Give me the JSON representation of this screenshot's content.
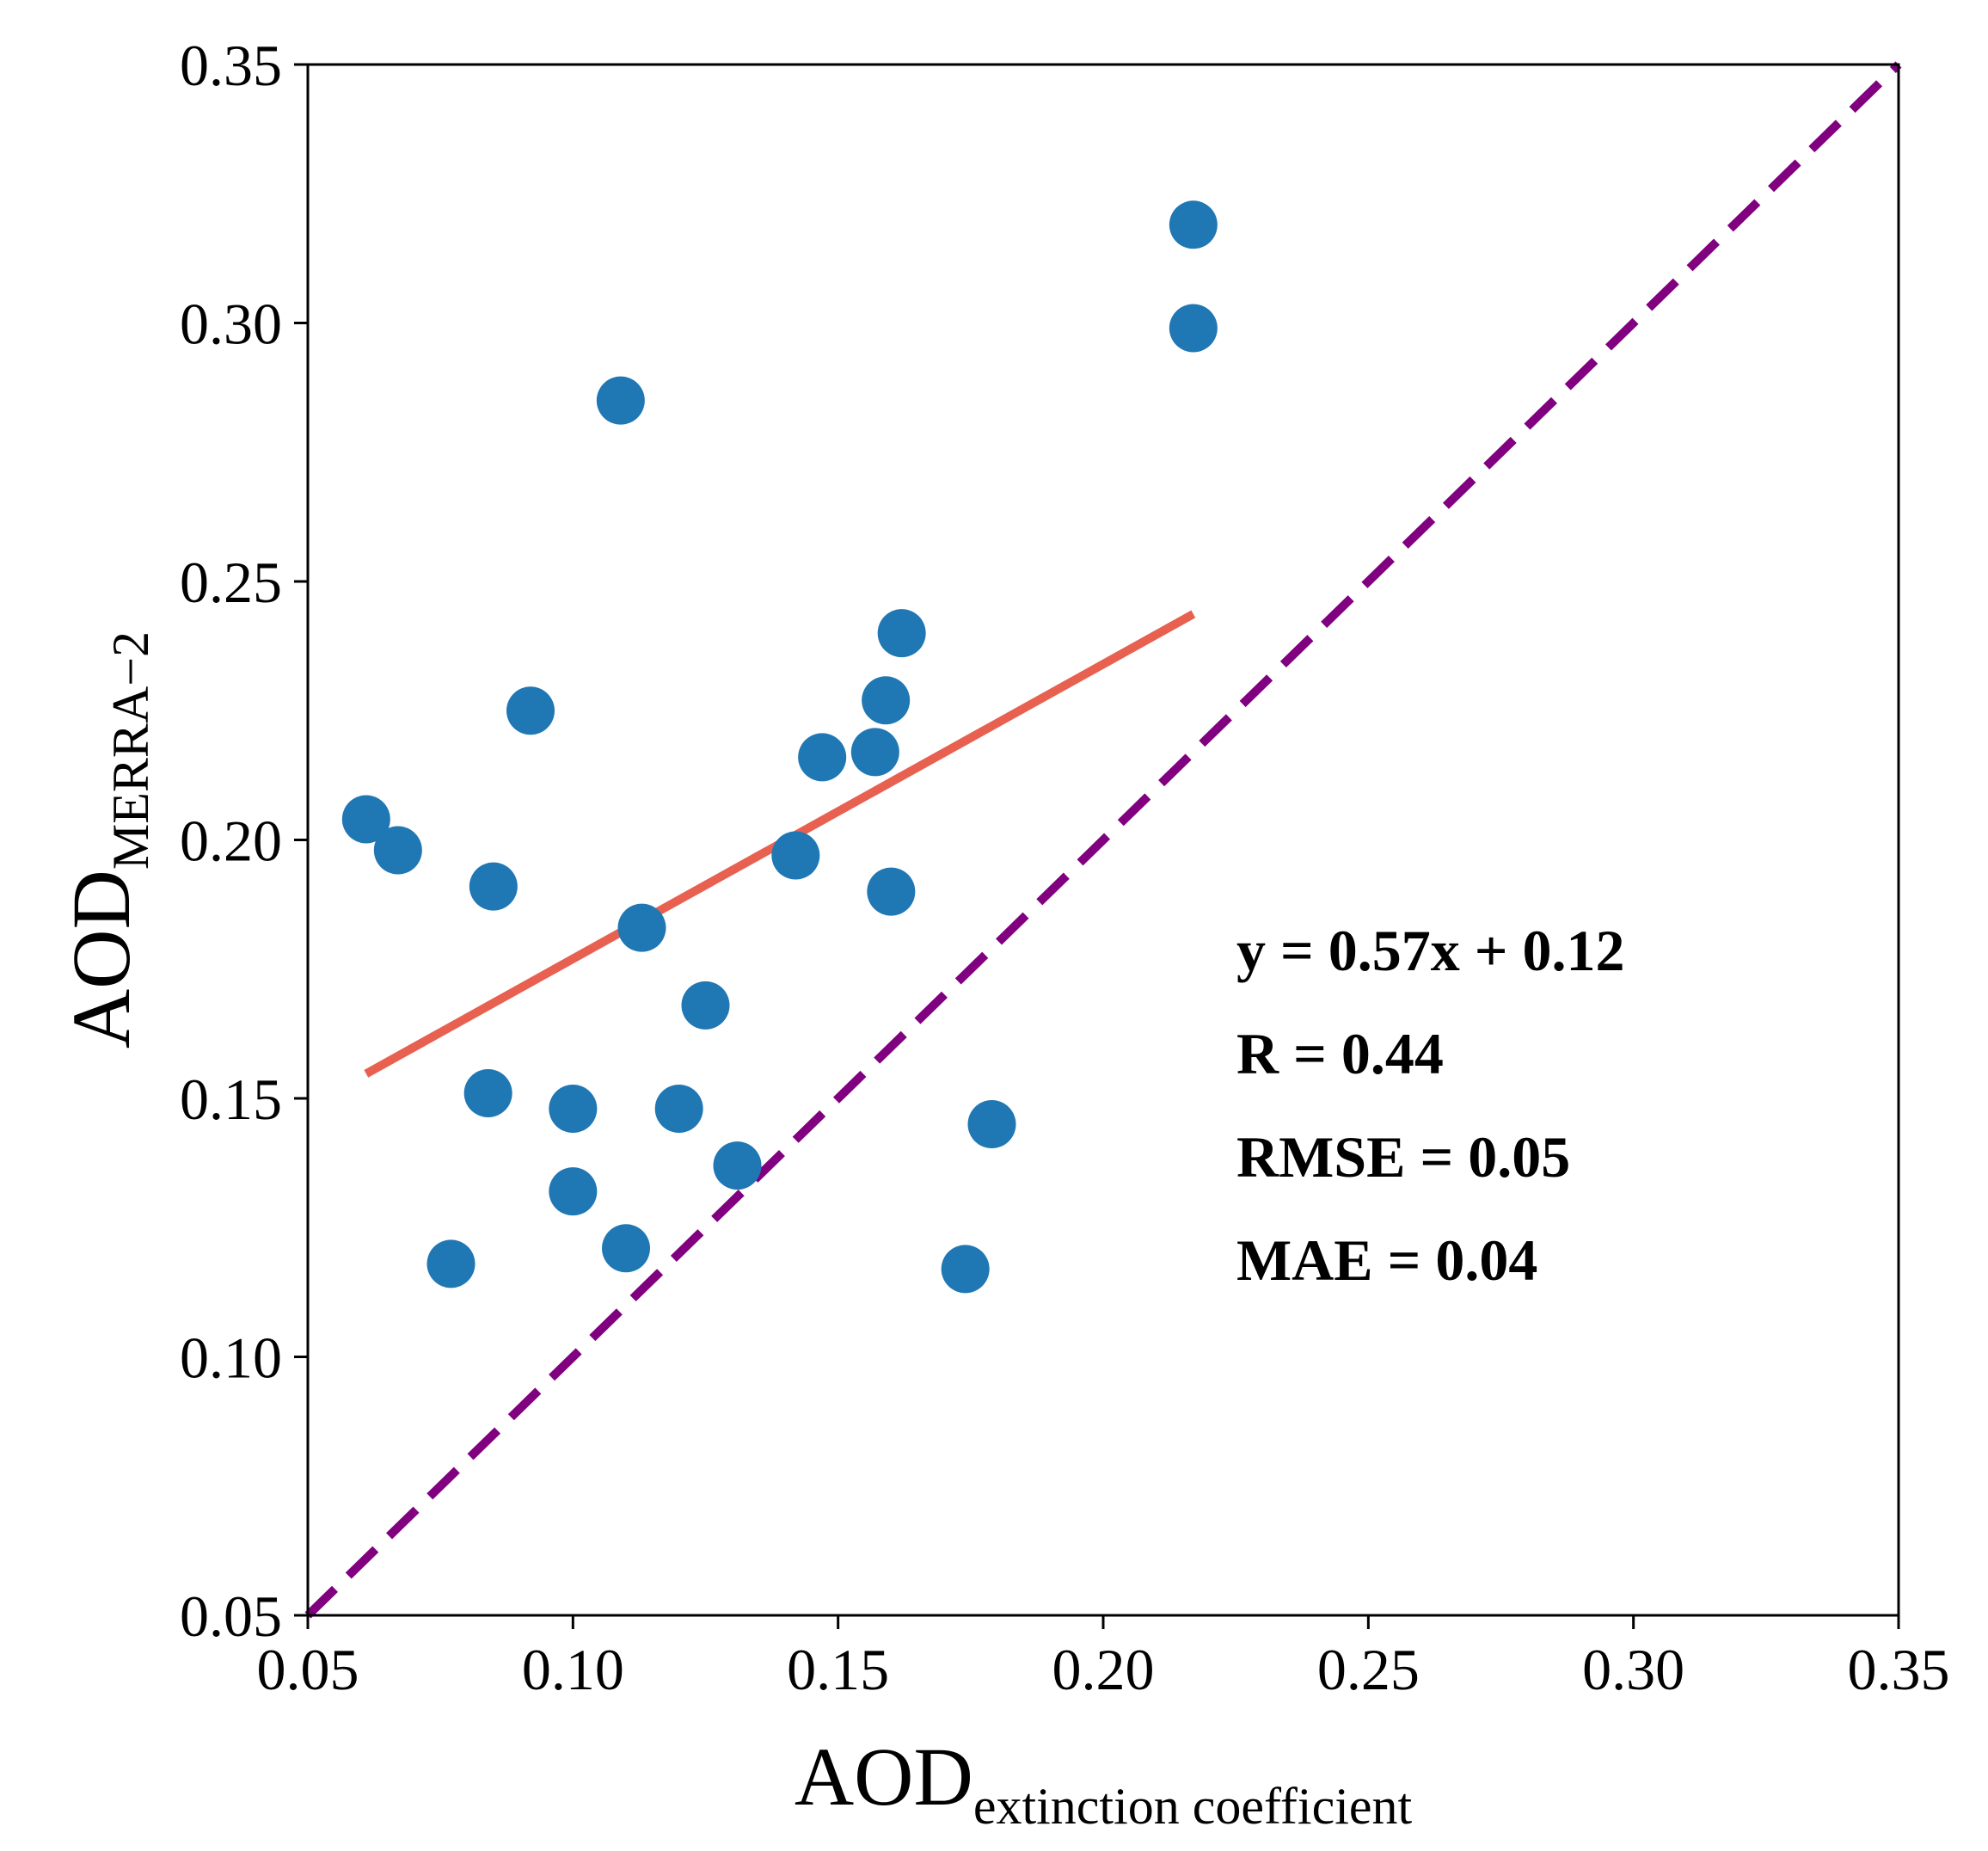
{
  "chart_data": {
    "type": "scatter",
    "xlabel": {
      "main": "AOD",
      "sub": "extinction coefficient"
    },
    "ylabel": {
      "main": "AOD",
      "sub": "MERRA−2"
    },
    "xlim": [
      0.05,
      0.35
    ],
    "ylim": [
      0.05,
      0.35
    ],
    "xticks": [
      "0.05",
      "0.10",
      "0.15",
      "0.20",
      "0.25",
      "0.30",
      "0.35"
    ],
    "yticks": [
      "0.05",
      "0.10",
      "0.15",
      "0.20",
      "0.25",
      "0.30",
      "0.35"
    ],
    "grid": false,
    "points": [
      {
        "x": 0.061,
        "y": 0.204
      },
      {
        "x": 0.067,
        "y": 0.198
      },
      {
        "x": 0.077,
        "y": 0.118
      },
      {
        "x": 0.084,
        "y": 0.151
      },
      {
        "x": 0.085,
        "y": 0.191
      },
      {
        "x": 0.092,
        "y": 0.225
      },
      {
        "x": 0.1,
        "y": 0.132
      },
      {
        "x": 0.1,
        "y": 0.148
      },
      {
        "x": 0.109,
        "y": 0.285
      },
      {
        "x": 0.11,
        "y": 0.121
      },
      {
        "x": 0.113,
        "y": 0.183
      },
      {
        "x": 0.12,
        "y": 0.148
      },
      {
        "x": 0.125,
        "y": 0.168
      },
      {
        "x": 0.131,
        "y": 0.137
      },
      {
        "x": 0.142,
        "y": 0.197
      },
      {
        "x": 0.147,
        "y": 0.216
      },
      {
        "x": 0.157,
        "y": 0.217
      },
      {
        "x": 0.159,
        "y": 0.227
      },
      {
        "x": 0.16,
        "y": 0.19
      },
      {
        "x": 0.162,
        "y": 0.24
      },
      {
        "x": 0.174,
        "y": 0.117
      },
      {
        "x": 0.179,
        "y": 0.145
      },
      {
        "x": 0.217,
        "y": 0.319
      },
      {
        "x": 0.217,
        "y": 0.299
      }
    ],
    "fit_line": {
      "slope": 0.57,
      "intercept": 0.12,
      "x_start": 0.061,
      "x_end": 0.217
    },
    "reference_line": {
      "x": [
        0.05,
        0.35
      ],
      "y": [
        0.05,
        0.35
      ]
    },
    "annotations": [
      "y = 0.57x + 0.12",
      "R = 0.44",
      "RMSE = 0.05",
      "MAE = 0.04"
    ],
    "colors": {
      "points": "#1f77b4",
      "fit_line": "#e8604f",
      "reference_line": "#800080"
    }
  }
}
